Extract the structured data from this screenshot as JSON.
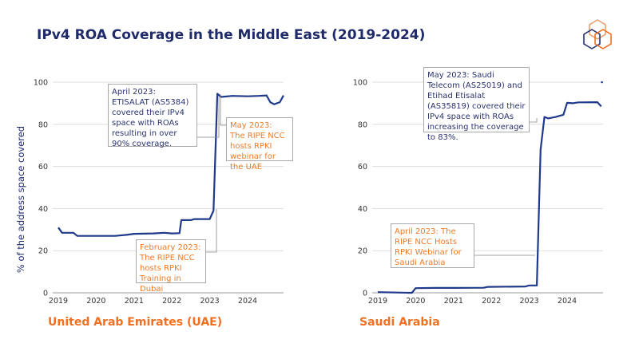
{
  "title": "IPv4 ROA Coverage in the Middle East (2019-2024)",
  "colors": {
    "line": "#1f3a8a",
    "accent": "#f36f21",
    "title": "#1f2a6b"
  },
  "logo": "hexagon-cubes-logo",
  "chart_data": [
    {
      "type": "line",
      "caption": "United Arab Emirates (UAE)",
      "ylabel": "% of the address space covered",
      "ylim": [
        0,
        100
      ],
      "yticks": [
        0,
        20,
        40,
        60,
        80,
        100
      ],
      "xticks": [
        "2019",
        "2020",
        "2021",
        "2022",
        "2023",
        "2024"
      ],
      "grid": true,
      "x": [
        2019.0,
        2019.1,
        2019.4,
        2019.5,
        2020.0,
        2020.5,
        2020.8,
        2021.0,
        2021.5,
        2021.8,
        2022.0,
        2022.2,
        2022.25,
        2022.5,
        2022.6,
        2022.9,
        2023.0,
        2023.1,
        2023.2,
        2023.3,
        2023.6,
        2024.0,
        2024.3,
        2024.5,
        2024.6,
        2024.7,
        2024.85,
        2024.95
      ],
      "y": [
        31,
        28.5,
        28.5,
        27,
        27,
        27,
        27.5,
        28,
        28.2,
        28.5,
        28.2,
        28.3,
        34.5,
        34.5,
        35,
        35,
        35,
        39,
        94.5,
        93,
        93.5,
        93.3,
        93.5,
        93.7,
        90.5,
        89.5,
        90.5,
        93.7
      ],
      "annotations": [
        {
          "text": "April 2023: ETISALAT (AS5384) covered their IPv4 space with ROAs resulting in over 90% coverage.",
          "color": "navy"
        },
        {
          "text": "May 2023: The RIPE NCC hosts RPKI webinar for the UAE",
          "color": "orange"
        },
        {
          "text": "February 2023: The RIPE NCC hosts RPKI Training in Dubai",
          "color": "orange"
        }
      ]
    },
    {
      "type": "line",
      "caption": "Saudi Arabia",
      "ylim": [
        0,
        100
      ],
      "yticks": [
        0,
        20,
        40,
        60,
        80,
        100
      ],
      "xticks": [
        "2019",
        "2020",
        "2021",
        "2022",
        "2023",
        "2024"
      ],
      "grid": true,
      "x": [
        2019.0,
        2019.8,
        2019.9,
        2020.0,
        2020.5,
        2021.0,
        2021.8,
        2021.9,
        2022.9,
        2023.0,
        2023.2,
        2023.3,
        2023.4,
        2023.5,
        2023.7,
        2023.8,
        2023.9,
        2024.0,
        2024.15,
        2024.3,
        2024.8,
        2024.9
      ],
      "y": [
        0.3,
        0,
        0,
        2.2,
        2.3,
        2.3,
        2.4,
        2.8,
        3,
        3.5,
        3.5,
        68,
        83.5,
        82.8,
        83.5,
        84,
        84.5,
        90.2,
        90,
        90.4,
        90.5,
        88.5
      ],
      "outlier": {
        "x": 2024.92,
        "y": 100
      },
      "annotations": [
        {
          "text": "May 2023: Saudi Telecom (AS25019) and Etihad Etisalat (AS35819) covered their IPv4 space with ROAs increasing the coverage to 83%.",
          "color": "navy"
        },
        {
          "text": "April 2023: The RIPE NCC Hosts RPKI Webinar for Saudi Arabia",
          "color": "orange"
        }
      ]
    }
  ]
}
